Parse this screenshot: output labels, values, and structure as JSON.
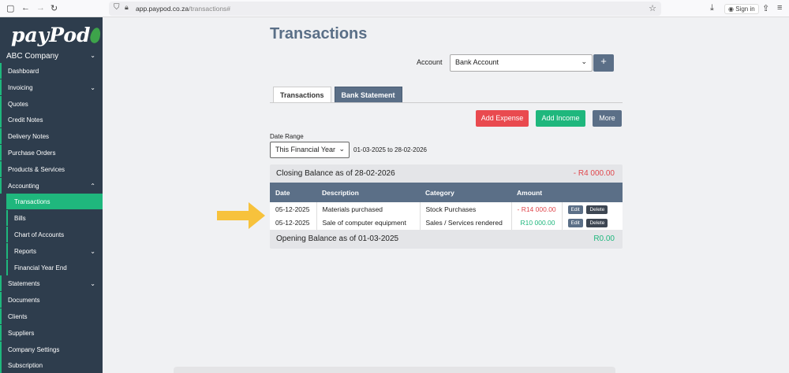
{
  "browser": {
    "url_domain": "app.paypod.co.za",
    "url_path": "/transactions#",
    "sign_in": "Sign in"
  },
  "sidebar": {
    "logo": "payPod",
    "company": "ABC Company",
    "items": [
      {
        "label": "Dashboard"
      },
      {
        "label": "Invoicing",
        "chevron": "down"
      },
      {
        "label": "Quotes"
      },
      {
        "label": "Credit Notes"
      },
      {
        "label": "Delivery Notes"
      },
      {
        "label": "Purchase Orders"
      },
      {
        "label": "Products & Services"
      },
      {
        "label": "Accounting",
        "chevron": "up"
      },
      {
        "label": "Transactions",
        "sub": true,
        "active": true
      },
      {
        "label": "Bills",
        "sub": true
      },
      {
        "label": "Chart of Accounts",
        "sub": true
      },
      {
        "label": "Reports",
        "sub": true,
        "chevron": "down"
      },
      {
        "label": "Financial Year End",
        "sub": true
      },
      {
        "label": "Statements",
        "chevron": "down"
      },
      {
        "label": "Documents"
      },
      {
        "label": "Clients"
      },
      {
        "label": "Suppliers"
      },
      {
        "label": "Company Settings"
      },
      {
        "label": "Subscription"
      }
    ]
  },
  "page": {
    "title": "Transactions",
    "account_label": "Account",
    "account_value": "Bank Account",
    "add_account": "+",
    "tabs": [
      "Transactions",
      "Bank Statement"
    ],
    "buttons": {
      "add_expense": "Add Expense",
      "add_income": "Add Income",
      "more": "More"
    },
    "date_range_label": "Date Range",
    "date_range_value": "This Financial Year",
    "date_range_text": "01-03-2025 to 28-02-2026",
    "closing_label": "Closing Balance as of 28-02-2026",
    "closing_value": "- R4 000.00",
    "opening_label": "Opening Balance as of 01-03-2025",
    "opening_value": "R0.00",
    "columns": [
      "Date",
      "Description",
      "Category",
      "Amount",
      ""
    ],
    "rows": [
      {
        "date": "05-12-2025",
        "description": "Materials purchased",
        "category": "Stock Purchases",
        "amount": "- R14 000.00",
        "type": "neg"
      },
      {
        "date": "05-12-2025",
        "description": "Sale of computer equipment",
        "category": "Sales / Services rendered",
        "amount": "R10 000.00",
        "type": "pos"
      }
    ],
    "edit": "Edit",
    "delete": "Delete"
  },
  "colors": {
    "sidebar": "#2e3d4d",
    "accent": "#1fb77d",
    "danger": "#e94a4f",
    "header": "#5b6f87",
    "arrow": "#f7c23c"
  }
}
